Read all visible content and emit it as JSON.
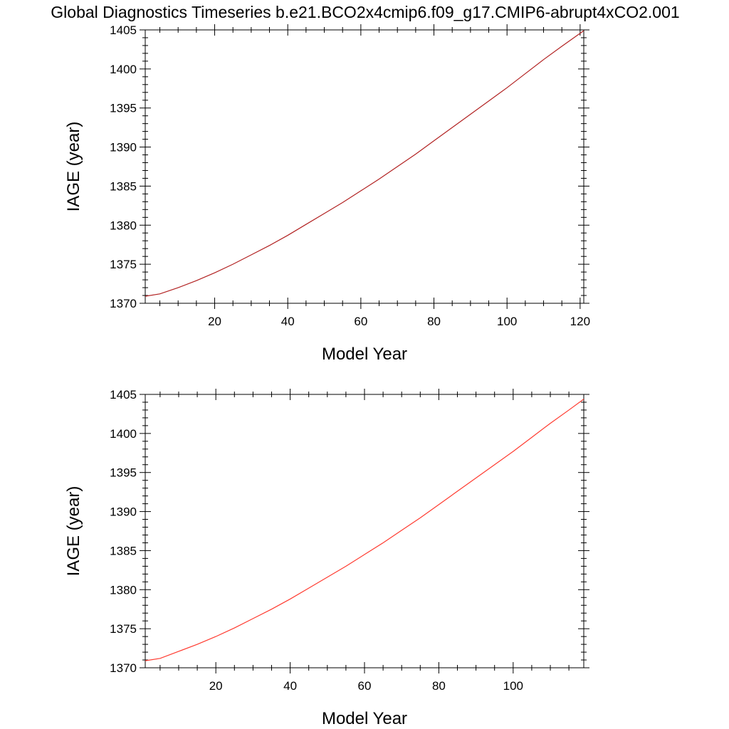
{
  "title": "Global Diagnostics Timeseries b.e21.BCO2x4cmip6.f09_g17.CMIP6-abrupt4xCO2.001",
  "colors": {
    "line_top": "#b22222",
    "line_bottom": "#ff3b30",
    "axis": "#000000"
  },
  "chart_data": [
    {
      "type": "line",
      "title": "",
      "xlabel": "Model Year",
      "ylabel": "IAGE (year)",
      "xlim": [
        1,
        121
      ],
      "ylim": [
        1370,
        1405
      ],
      "xticks": [
        20,
        40,
        60,
        80,
        100,
        120
      ],
      "yticks": [
        1370,
        1375,
        1380,
        1385,
        1390,
        1395,
        1400,
        1405
      ],
      "grid": false,
      "series": [
        {
          "x": [
            1,
            5,
            10,
            15,
            20,
            25,
            30,
            35,
            40,
            45,
            50,
            55,
            60,
            65,
            70,
            75,
            80,
            85,
            90,
            95,
            100,
            105,
            110,
            115,
            121
          ],
          "values": [
            1370.9,
            1371.2,
            1372.0,
            1372.9,
            1373.9,
            1375.0,
            1376.2,
            1377.4,
            1378.7,
            1380.1,
            1381.5,
            1382.9,
            1384.4,
            1385.9,
            1387.5,
            1389.1,
            1390.8,
            1392.5,
            1394.2,
            1395.9,
            1397.6,
            1399.4,
            1401.2,
            1402.9,
            1404.9
          ]
        }
      ]
    },
    {
      "type": "line",
      "title": "",
      "xlabel": "Model Year",
      "ylabel": "IAGE (year)",
      "xlim": [
        1,
        119
      ],
      "ylim": [
        1370,
        1405
      ],
      "xticks": [
        20,
        40,
        60,
        80,
        100
      ],
      "yticks": [
        1370,
        1375,
        1380,
        1385,
        1390,
        1395,
        1400,
        1405
      ],
      "grid": false,
      "series": [
        {
          "x": [
            1,
            5,
            10,
            15,
            20,
            25,
            30,
            35,
            40,
            45,
            50,
            55,
            60,
            65,
            70,
            75,
            80,
            85,
            90,
            95,
            100,
            105,
            110,
            115,
            119
          ],
          "values": [
            1370.9,
            1371.2,
            1372.1,
            1373.0,
            1374.0,
            1375.1,
            1376.3,
            1377.5,
            1378.8,
            1380.2,
            1381.6,
            1383.0,
            1384.5,
            1386.0,
            1387.6,
            1389.2,
            1390.9,
            1392.6,
            1394.3,
            1396.0,
            1397.7,
            1399.5,
            1401.3,
            1403.0,
            1404.4
          ]
        }
      ]
    }
  ]
}
